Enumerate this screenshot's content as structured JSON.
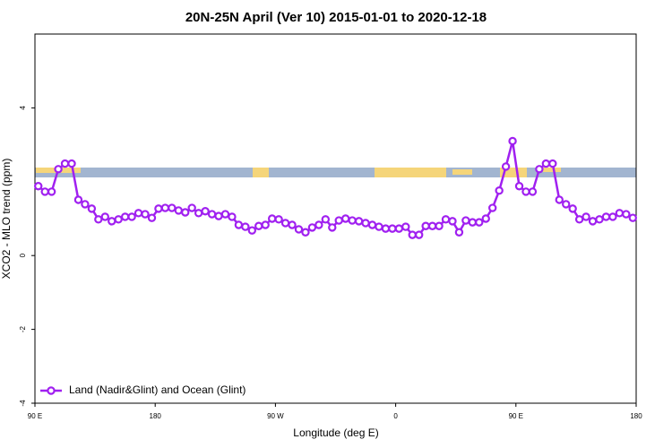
{
  "chart_data": {
    "type": "line",
    "title": "20N-25N April (Ver 10)   2015-01-01 to 2020-12-18",
    "x_label": "Longitude (deg E)",
    "y_label": "XCO2 - MLO trend (ppm)",
    "xlim": [
      90,
      540
    ],
    "ylim": [
      -4,
      6
    ],
    "xticks": [
      {
        "value": 90,
        "label": "90 E"
      },
      {
        "value": 180,
        "label": "180"
      },
      {
        "value": 270,
        "label": "90 W"
      },
      {
        "value": 360,
        "label": "0"
      },
      {
        "value": 450,
        "label": "90 E"
      },
      {
        "value": 540,
        "label": "180"
      }
    ],
    "yticks": [
      -4,
      -2,
      0,
      4
    ],
    "legend": "bottom-left",
    "x": [
      92.5,
      97.5,
      102.5,
      107.5,
      112.5,
      117.5,
      122.5,
      127.5,
      132.5,
      137.5,
      142.5,
      147.5,
      152.5,
      157.5,
      162.5,
      167.5,
      172.5,
      177.5,
      182.5,
      187.5,
      192.5,
      197.5,
      202.5,
      207.5,
      212.5,
      217.5,
      222.5,
      227.5,
      232.5,
      237.5,
      242.5,
      247.5,
      252.5,
      257.5,
      262.5,
      267.5,
      272.5,
      277.5,
      282.5,
      287.5,
      292.5,
      297.5,
      302.5,
      307.5,
      312.5,
      317.5,
      322.5,
      327.5,
      332.5,
      337.5,
      342.5,
      347.5,
      352.5,
      357.5,
      362.5,
      367.5,
      372.5,
      377.5,
      382.5,
      387.5,
      392.5,
      397.5,
      402.5,
      407.5,
      412.5,
      417.5,
      422.5,
      427.5,
      432.5,
      437.5,
      442.5,
      447.5,
      452.5,
      457.5,
      462.5,
      467.5,
      472.5,
      477.5,
      482.5,
      487.5,
      492.5,
      497.5,
      502.5,
      507.5,
      512.5,
      517.5,
      522.5,
      527.5,
      532.5,
      537.5
    ],
    "series": [
      {
        "name": "Land (Nadir&Glint) and Ocean (Glint)",
        "color": "#a020f0",
        "values": [
          1.88,
          1.73,
          1.73,
          2.34,
          2.49,
          2.49,
          1.51,
          1.39,
          1.27,
          0.98,
          1.05,
          0.93,
          0.98,
          1.05,
          1.05,
          1.15,
          1.12,
          1.02,
          1.27,
          1.29,
          1.29,
          1.22,
          1.17,
          1.29,
          1.15,
          1.2,
          1.12,
          1.07,
          1.12,
          1.05,
          0.83,
          0.78,
          0.68,
          0.8,
          0.83,
          1.0,
          0.98,
          0.88,
          0.83,
          0.71,
          0.63,
          0.76,
          0.83,
          0.98,
          0.76,
          0.95,
          1.0,
          0.95,
          0.93,
          0.88,
          0.83,
          0.78,
          0.73,
          0.73,
          0.73,
          0.78,
          0.56,
          0.56,
          0.8,
          0.8,
          0.8,
          0.98,
          0.93,
          0.63,
          0.95,
          0.9,
          0.9,
          1.0,
          1.29,
          1.76,
          2.41,
          3.1,
          1.88,
          1.73,
          1.73,
          2.34,
          2.49,
          2.49,
          1.51,
          1.39,
          1.27,
          0.98,
          1.05,
          0.93,
          0.98,
          1.05,
          1.05,
          1.15,
          1.12,
          1.02
        ]
      }
    ]
  }
}
